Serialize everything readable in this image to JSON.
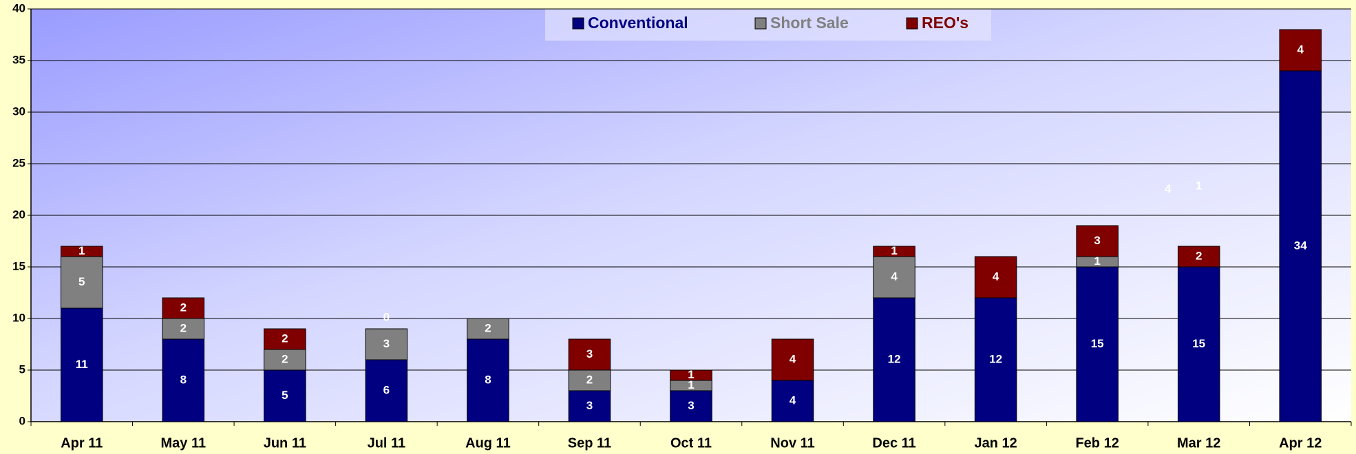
{
  "chart_data": {
    "type": "bar",
    "stacked": true,
    "categories": [
      "Apr 11",
      "May 11",
      "Jun 11",
      "Jul 11",
      "Aug 11",
      "Sep 11",
      "Oct 11",
      "Nov 11",
      "Dec 11",
      "Jan 12",
      "Feb 12",
      "Mar 12",
      "Apr 12"
    ],
    "series": [
      {
        "name": "Conventional",
        "color": "#000080",
        "values": [
          11,
          8,
          5,
          6,
          8,
          3,
          3,
          4,
          12,
          12,
          15,
          15,
          34
        ]
      },
      {
        "name": "Short Sale",
        "color": "#808080",
        "values": [
          5,
          2,
          2,
          3,
          2,
          2,
          1,
          0,
          4,
          null,
          1,
          null,
          null
        ]
      },
      {
        "name": "REO's",
        "color": "#800000",
        "values": [
          1,
          2,
          2,
          0,
          null,
          3,
          1,
          4,
          1,
          4,
          3,
          2,
          4
        ]
      }
    ],
    "annotations": [
      {
        "text": "4",
        "category": "Mar 12",
        "y": 22.5
      },
      {
        "text": "1",
        "category": "Mar 12",
        "y": 22.8
      }
    ],
    "ylim": [
      0,
      40
    ],
    "yticks": [
      0,
      5,
      10,
      15,
      20,
      25,
      30,
      35,
      40
    ],
    "grid": true,
    "legend": "top"
  }
}
